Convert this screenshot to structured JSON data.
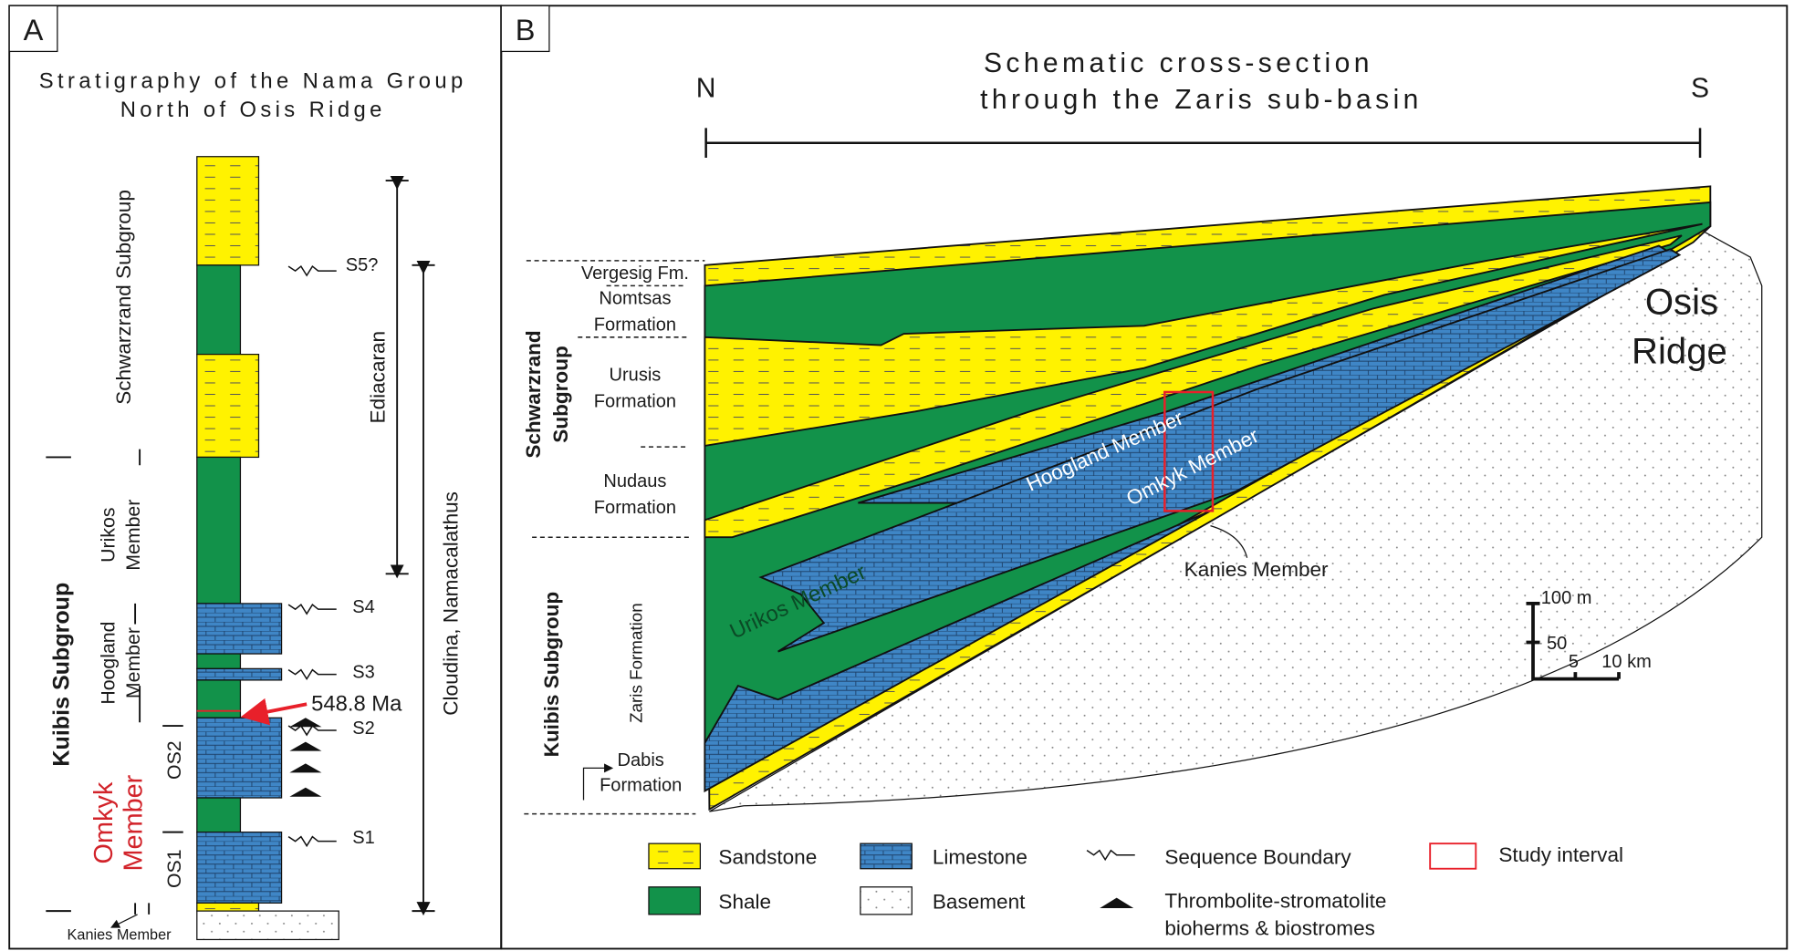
{
  "panel_a": {
    "label": "A",
    "title": [
      "Stratigraphy of the Nama Group",
      "North of Osis Ridge"
    ],
    "schwarzrand": "Schwarzrand Subgroup",
    "urikos": [
      "Urikos",
      "Member"
    ],
    "hoogland": [
      "Hoogland",
      "Member"
    ],
    "kuibis": "Kuibis Subgroup",
    "omkyk": [
      "Omkyk",
      "Member"
    ],
    "os2": "OS2",
    "os1": "OS1",
    "kanies": "Kanies Member",
    "boundaries": [
      "S5?",
      "S4",
      "S3",
      "S2",
      "S1"
    ],
    "age": "548.8 Ma",
    "ediacaran": "Ediacaran",
    "fossils": "Cloudina, Namacalathus"
  },
  "panel_b": {
    "label": "B",
    "title": [
      "Schematic cross-section",
      "through the Zaris sub-basin"
    ],
    "north": "N",
    "south": "S",
    "units": {
      "vergesig": "Vergesig Fm.",
      "nomtsas": [
        "Nomtsas",
        "Formation"
      ],
      "urusis": [
        "Urusis",
        "Formation"
      ],
      "nudaus": [
        "Nudaus",
        "Formation"
      ],
      "schwarzrand": [
        "Schwarzrand",
        "Subgroup"
      ],
      "kuibis": "Kuibis Subgroup",
      "zaris": "Zaris Formation",
      "dabis": [
        "Dabis",
        "Formation"
      ]
    },
    "members": {
      "hoogland": "Hoogland Member",
      "omkyk": "Omkyk Member",
      "urikos": "Urikos Member",
      "kanies": "Kanies Member"
    },
    "ridge": [
      "Osis",
      "Ridge"
    ],
    "scale": {
      "vertical": "100 m",
      "mid": "50",
      "h5": "5",
      "h10": "10 km"
    }
  },
  "legend": {
    "sandstone": "Sandstone",
    "limestone": "Limestone",
    "sequence_boundary": "Sequence Boundary",
    "study_interval": "Study interval",
    "shale": "Shale",
    "basement": "Basement",
    "bioherms": [
      "Thrombolite-stromatolite",
      "bioherms & biostromes"
    ]
  }
}
